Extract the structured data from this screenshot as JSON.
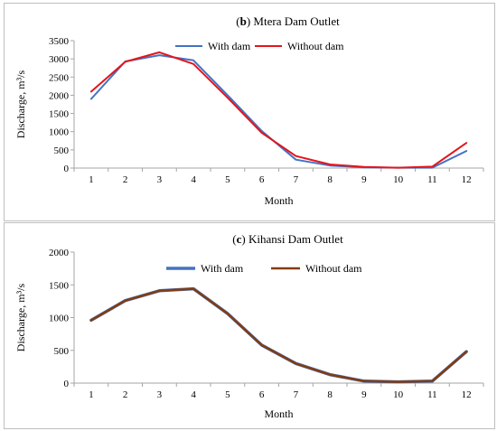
{
  "chart_data": [
    {
      "type": "line",
      "title_prefix": "(",
      "title_letter": "b",
      "title_rest": ") Mtera Dam Outlet",
      "xlabel": "Month",
      "ylabel": "Discharge, m³/s",
      "x": [
        1,
        2,
        3,
        4,
        5,
        6,
        7,
        8,
        9,
        10,
        11,
        12
      ],
      "ylim": [
        0,
        3500
      ],
      "yticks": [
        0,
        500,
        1000,
        1500,
        2000,
        2500,
        3000,
        3500
      ],
      "grid": false,
      "legend_placement": "top-center",
      "series": [
        {
          "name": "With dam",
          "color": "#4472c4",
          "values": [
            1900,
            2930,
            3100,
            2960,
            2000,
            1020,
            230,
            70,
            20,
            10,
            10,
            470
          ]
        },
        {
          "name": "Without dam",
          "color": "#e3151b",
          "values": [
            2100,
            2920,
            3180,
            2860,
            1930,
            970,
            330,
            100,
            30,
            10,
            40,
            690
          ]
        }
      ]
    },
    {
      "type": "line",
      "title_prefix": "(",
      "title_letter": "c",
      "title_rest": ") Kihansi Dam Outlet",
      "xlabel": "Month",
      "ylabel": "Discharge, m³/s",
      "x": [
        1,
        2,
        3,
        4,
        5,
        6,
        7,
        8,
        9,
        10,
        11,
        12
      ],
      "ylim": [
        0,
        2000
      ],
      "yticks": [
        0,
        500,
        1000,
        1500,
        2000
      ],
      "grid": false,
      "legend_placement": "top-center",
      "series": [
        {
          "name": "With dam",
          "color": "#4472c4",
          "values": [
            960,
            1260,
            1410,
            1440,
            1060,
            580,
            300,
            130,
            30,
            20,
            30,
            480
          ]
        },
        {
          "name": "Without dam",
          "color": "#843c0c",
          "values": [
            960,
            1260,
            1410,
            1440,
            1060,
            580,
            300,
            130,
            30,
            20,
            30,
            480
          ]
        }
      ]
    }
  ]
}
